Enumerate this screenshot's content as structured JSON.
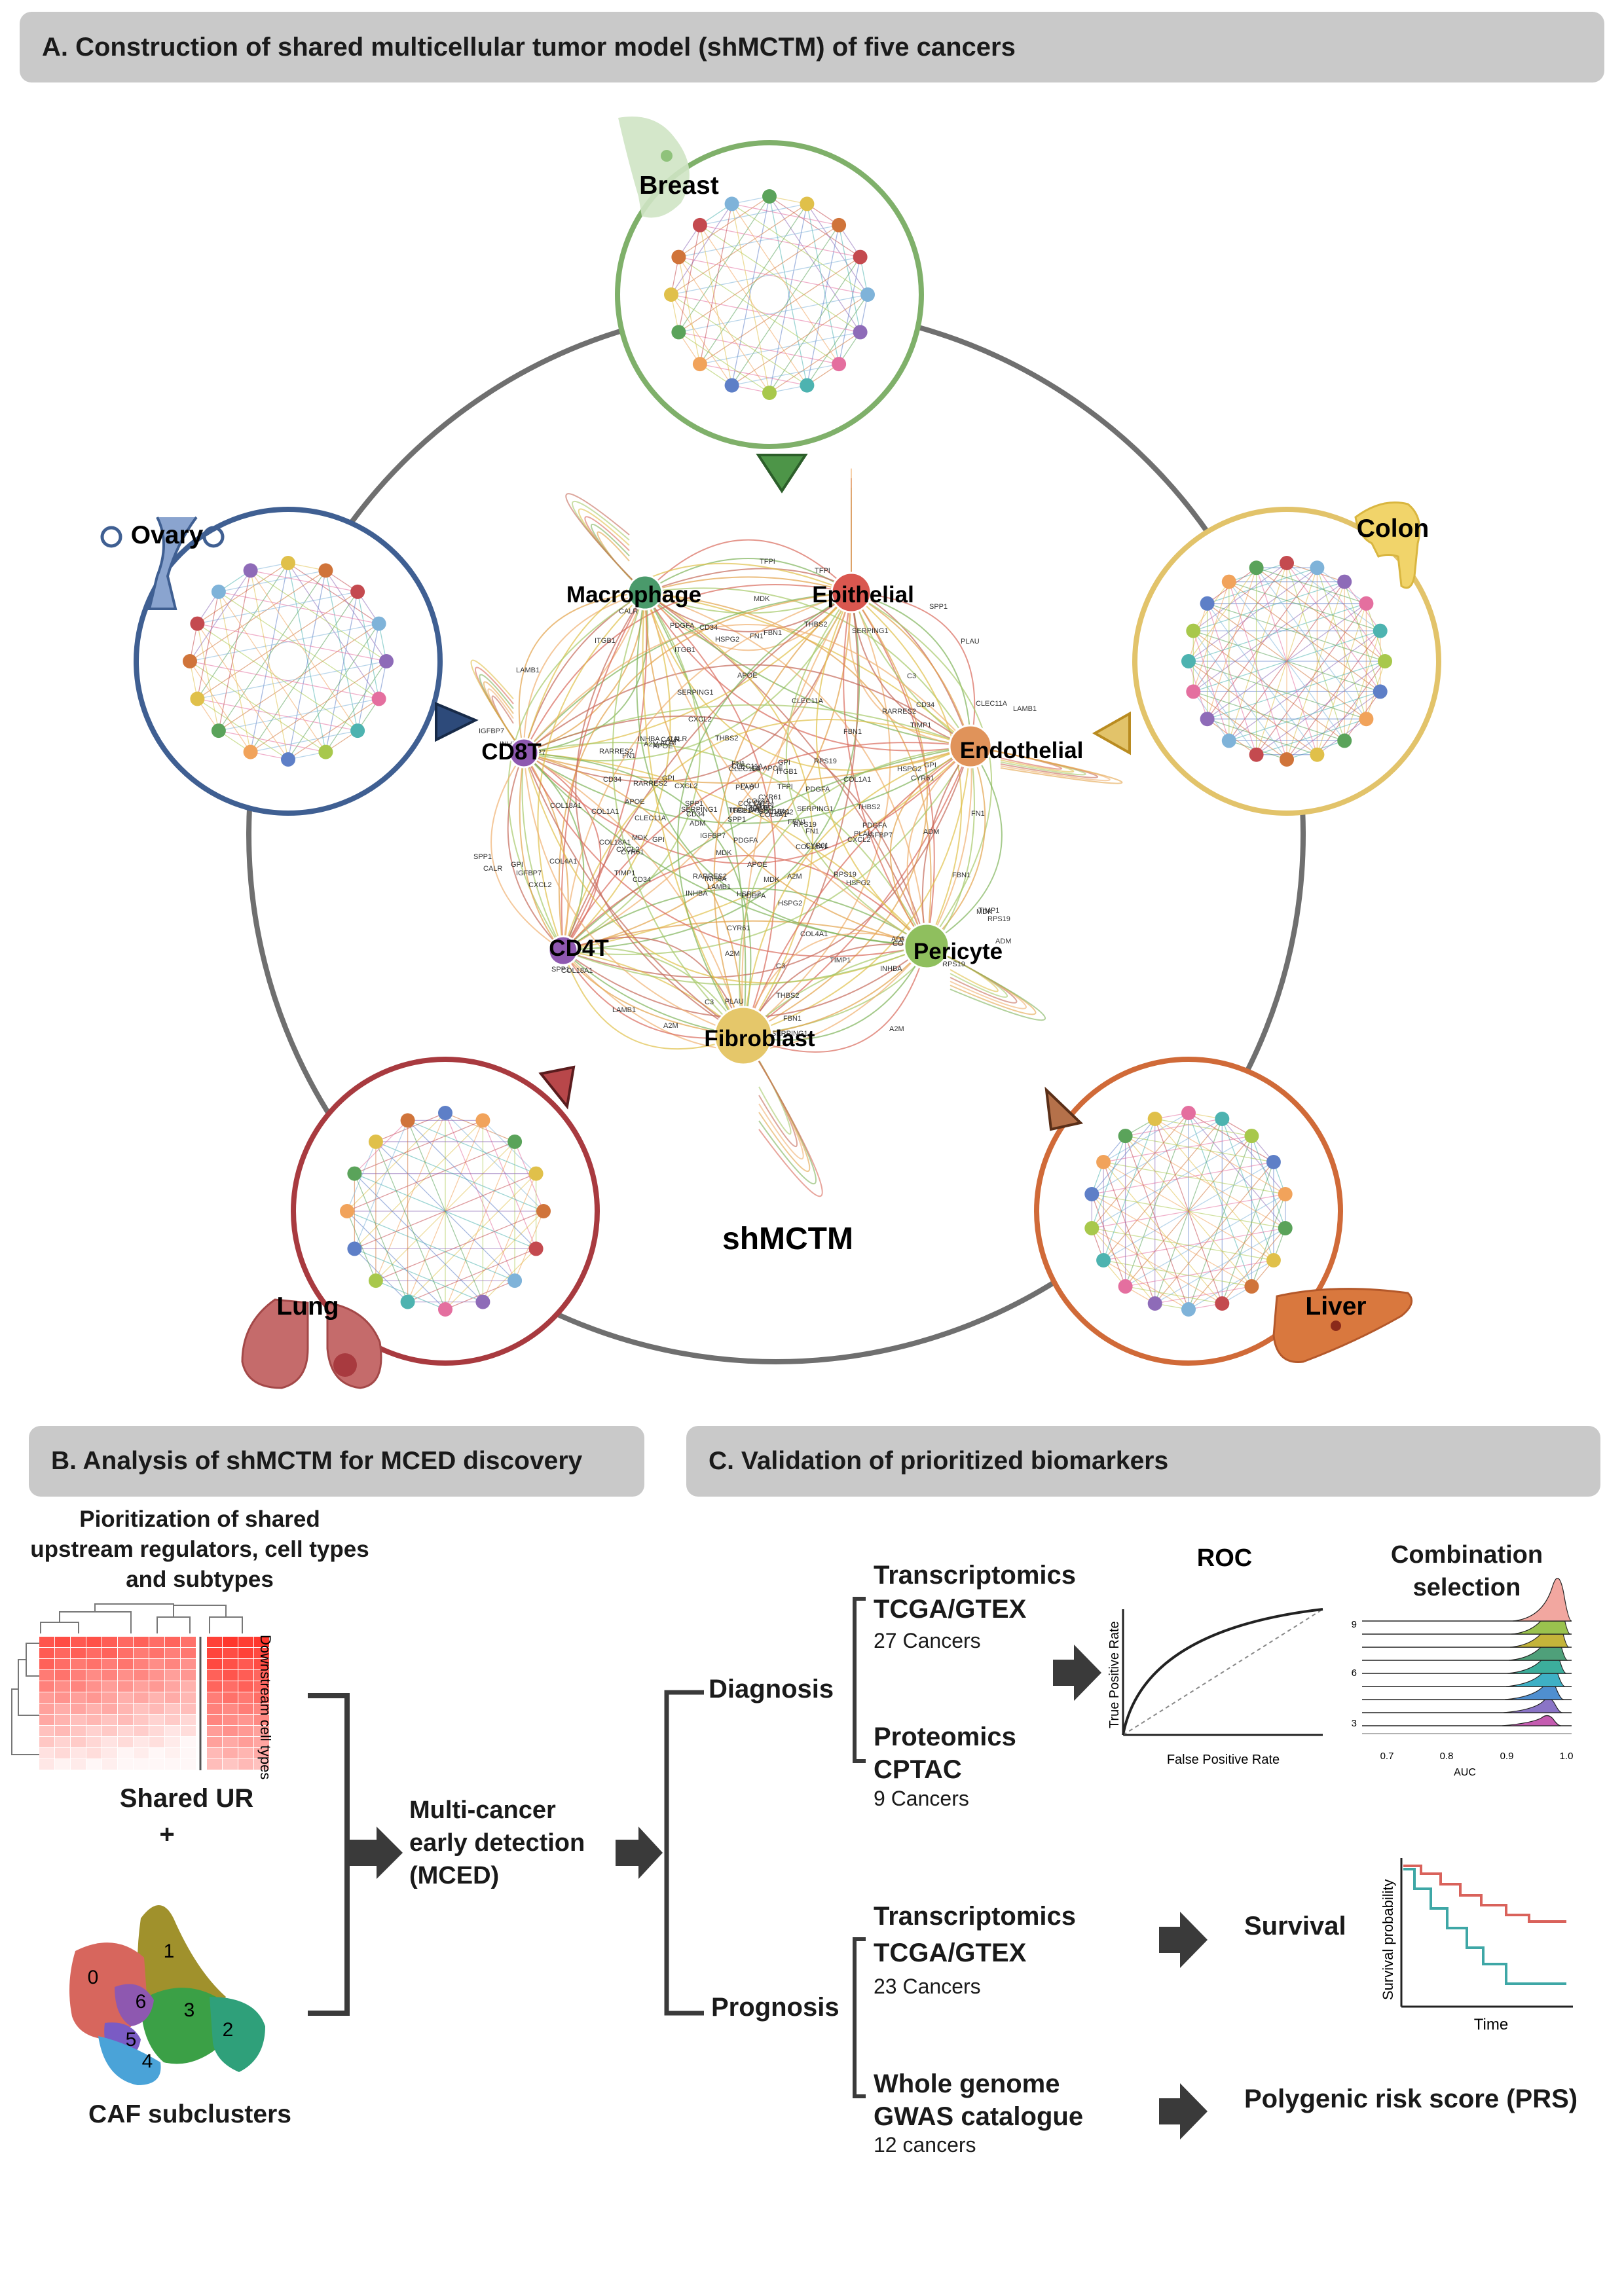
{
  "panel_a": {
    "heading": "A.  Construction of shared multicellular tumor model (shMCTM) of five cancers",
    "center_label": "shMCTM",
    "cancers": [
      "Breast",
      "Colon",
      "Liver",
      "Lung",
      "Ovary"
    ],
    "cell_types": [
      "Macrophage",
      "Epithelial",
      "Endothelial",
      "CD8T",
      "CD4T",
      "Pericyte",
      "Fibroblast"
    ],
    "gene_labels": [
      "COL1A1",
      "CYR61",
      "CXCL2",
      "MDK",
      "APOE",
      "C3",
      "PLAU",
      "SPP1",
      "CLEC11A",
      "FN1",
      "COL4A1",
      "LAMB1",
      "HSPG2",
      "PDGFA",
      "TIMP1",
      "THBS2",
      "A2M",
      "ADM",
      "GPI",
      "INHBA",
      "RARRES2",
      "RPS19",
      "SERPING1",
      "CD34",
      "CALR",
      "FBN1",
      "COL18A1",
      "TFPI",
      "IGFBP7",
      "ITGB1"
    ],
    "colors": {
      "breast": "#7fb06a",
      "colon": "#e2c36a",
      "liver": "#d06a38",
      "lung": "#a83a3f",
      "ovary": "#3f5f92",
      "ring": "#6f6f6f"
    }
  },
  "panel_b": {
    "heading": "B.  Analysis of shMCTM for MCED discovery",
    "prioritization": "Pioritization of shared upstream regulators, cell types and subtypes",
    "heatmap_side_label": "Downstream cell types",
    "shared_ur": "Shared UR",
    "plus": "+",
    "caf_label": "CAF subclusters",
    "caf_clusters": [
      "0",
      "1",
      "2",
      "3",
      "4",
      "5",
      "6"
    ],
    "mced": "Multi-cancer early detection (MCED)"
  },
  "panel_c": {
    "heading": "C.  Validation of prioritized biomarkers",
    "diagnosis": "Diagnosis",
    "prognosis": "Prognosis",
    "diag_items": [
      {
        "title": "Transcriptomics",
        "source": "TCGA/GTEX",
        "count": "27 Cancers"
      },
      {
        "title": "Proteomics",
        "source": "CPTAC",
        "count": "9 Cancers"
      }
    ],
    "prog_items": [
      {
        "title": "Transcriptomics",
        "source": "TCGA/GTEX",
        "count": "23 Cancers"
      },
      {
        "title": "Whole genome",
        "source": "GWAS catalogue",
        "count": "12 cancers"
      }
    ],
    "roc": {
      "title": "ROC",
      "ylabel": "True Positive Rate",
      "xlabel": "False Positive Rate"
    },
    "combination": {
      "title": "Combination selection",
      "xlabel": "AUC",
      "xticks": [
        "0.7",
        "0.8",
        "0.9",
        "1.0"
      ],
      "yticks": [
        "3",
        "6",
        "9"
      ]
    },
    "survival": {
      "title": "Survival",
      "ylabel": "Survival probability",
      "xlabel": "Time"
    },
    "prs": "Polygenic risk score (PRS)"
  }
}
